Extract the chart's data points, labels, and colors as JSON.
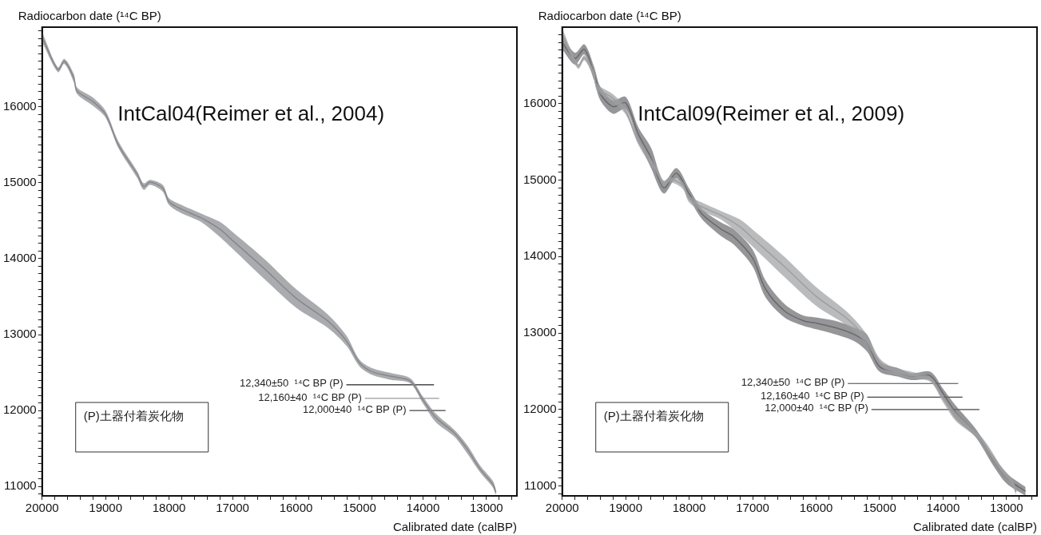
{
  "chart_data": [
    {
      "type": "line",
      "title": "IntCal04(Reimer et al., 2004)",
      "xlabel": "Calibrated date (calBP)",
      "ylabel": "Radiocarbon date (¹⁴C BP)",
      "annotations": [
        "(P)土器付着炭化物"
      ],
      "grid": false,
      "legend": false,
      "xlim": [
        20000,
        12520
      ],
      "ylim": [
        10876,
        17050
      ],
      "xticks": [
        20000,
        {
          "value": 19800,
          "label": null
        },
        {
          "value": 19600,
          "label": null
        },
        {
          "value": 19400,
          "label": null
        },
        {
          "value": 19200,
          "label": null
        },
        19000,
        {
          "value": 18800,
          "label": null
        },
        {
          "value": 18600,
          "label": null
        },
        {
          "value": 18400,
          "label": null
        },
        {
          "value": 18200,
          "label": null
        },
        18000,
        {
          "value": 17800,
          "label": null
        },
        {
          "value": 17600,
          "label": null
        },
        {
          "value": 17400,
          "label": null
        },
        {
          "value": 17200,
          "label": null
        },
        17000,
        {
          "value": 16800,
          "label": null
        },
        {
          "value": 16600,
          "label": null
        },
        {
          "value": 16400,
          "label": null
        },
        {
          "value": 16200,
          "label": null
        },
        16000,
        {
          "value": 15800,
          "label": null
        },
        {
          "value": 15600,
          "label": null
        },
        {
          "value": 15400,
          "label": null
        },
        {
          "value": 15200,
          "label": null
        },
        15000,
        {
          "value": 14800,
          "label": null
        },
        {
          "value": 14600,
          "label": null
        },
        {
          "value": 14400,
          "label": null
        },
        {
          "value": 14200,
          "label": null
        },
        14000,
        {
          "value": 13800,
          "label": null
        },
        {
          "value": 13600,
          "label": null
        },
        {
          "value": 13400,
          "label": null
        },
        {
          "value": 13200,
          "label": null
        },
        13000,
        {
          "value": 12800,
          "label": null
        },
        {
          "value": 12600,
          "label": null
        }
      ],
      "yticks": [
        {
          "value": 10900,
          "label": null
        },
        11000,
        {
          "value": 11100,
          "label": null
        },
        {
          "value": 11200,
          "label": null
        },
        {
          "value": 11300,
          "label": null
        },
        {
          "value": 11400,
          "label": null
        },
        {
          "value": 11500,
          "label": null
        },
        {
          "value": 11600,
          "label": null
        },
        {
          "value": 11700,
          "label": null
        },
        {
          "value": 11800,
          "label": null
        },
        {
          "value": 11900,
          "label": null
        },
        12000,
        {
          "value": 12100,
          "label": null
        },
        {
          "value": 12200,
          "label": null
        },
        {
          "value": 12300,
          "label": null
        },
        {
          "value": 12400,
          "label": null
        },
        {
          "value": 12500,
          "label": null
        },
        {
          "value": 12600,
          "label": null
        },
        {
          "value": 12700,
          "label": null
        },
        {
          "value": 12800,
          "label": null
        },
        {
          "value": 12900,
          "label": null
        },
        13000,
        {
          "value": 13100,
          "label": null
        },
        {
          "value": 13200,
          "label": null
        },
        {
          "value": 13300,
          "label": null
        },
        {
          "value": 13400,
          "label": null
        },
        {
          "value": 13500,
          "label": null
        },
        {
          "value": 13600,
          "label": null
        },
        {
          "value": 13700,
          "label": null
        },
        {
          "value": 13800,
          "label": null
        },
        {
          "value": 13900,
          "label": null
        },
        14000,
        {
          "value": 14100,
          "label": null
        },
        {
          "value": 14200,
          "label": null
        },
        {
          "value": 14300,
          "label": null
        },
        {
          "value": 14400,
          "label": null
        },
        {
          "value": 14500,
          "label": null
        },
        {
          "value": 14600,
          "label": null
        },
        {
          "value": 14700,
          "label": null
        },
        {
          "value": 14800,
          "label": null
        },
        {
          "value": 14900,
          "label": null
        },
        15000,
        {
          "value": 15100,
          "label": null
        },
        {
          "value": 15200,
          "label": null
        },
        {
          "value": 15300,
          "label": null
        },
        {
          "value": 15400,
          "label": null
        },
        {
          "value": 15500,
          "label": null
        },
        {
          "value": 15600,
          "label": null
        },
        {
          "value": 15700,
          "label": null
        },
        {
          "value": 15800,
          "label": null
        },
        {
          "value": 15900,
          "label": null
        },
        16000,
        {
          "value": 16100,
          "label": null
        },
        {
          "value": 16200,
          "label": null
        },
        {
          "value": 16300,
          "label": null
        },
        {
          "value": 16400,
          "label": null
        },
        {
          "value": 16500,
          "label": null
        },
        {
          "value": 16600,
          "label": null
        },
        {
          "value": 16700,
          "label": null
        },
        {
          "value": 16800,
          "label": null
        },
        {
          "value": 16900,
          "label": null
        },
        {
          "value": 17000,
          "label": null
        }
      ],
      "series": [
        {
          "type": "line",
          "color": "#86878c",
          "x": [
            20000,
            19750,
            19650,
            19500,
            19450,
            19200,
            19000,
            18800,
            18500,
            18400,
            18300,
            18100,
            18000,
            17800,
            17500,
            17200,
            17000,
            16500,
            16000,
            15500,
            15200,
            15000,
            14800,
            14500,
            14200,
            14000,
            13800,
            13500,
            13300,
            13100,
            12900,
            12850
          ],
          "values": [
            16920,
            16490,
            16600,
            16380,
            16210,
            16070,
            15900,
            15500,
            15110,
            14950,
            15010,
            14930,
            14750,
            14650,
            14540,
            14390,
            14240,
            13870,
            13480,
            13180,
            12910,
            12630,
            12510,
            12450,
            12390,
            12140,
            11910,
            11700,
            11490,
            11230,
            11030,
            10920
          ],
          "upper": [
            16988,
            16520,
            16633,
            16434,
            16257,
            16124,
            15947,
            15548,
            15150,
            14995,
            15039,
            14973,
            14796,
            14707,
            14596,
            14485,
            14353,
            13998,
            13600,
            13267,
            12980,
            12670,
            12559,
            12493,
            12426,
            12182,
            11961,
            11740,
            11540,
            11275,
            11075,
            10964
          ],
          "lower": [
            16855,
            16456,
            16567,
            16323,
            16168,
            16013,
            15858,
            15460,
            15061,
            14906,
            14973,
            14884,
            14707,
            14596,
            14485,
            14286,
            14131,
            13733,
            13356,
            13090,
            12847,
            12581,
            12470,
            12404,
            12360,
            12094,
            11850,
            11651,
            11430,
            11186,
            10987,
            10876
          ]
        },
        {
          "type": "line",
          "name": "12,340±50  ¹⁴C BP (P)",
          "color": "#222222",
          "x": [
            15207,
            13826
          ],
          "values": [
            12340,
            12340
          ]
        },
        {
          "type": "line",
          "name": "12,160±40  ¹⁴C BP (P)",
          "color": "#9a9a9a",
          "x": [
            14915,
            13744
          ],
          "values": [
            12160,
            12160
          ]
        },
        {
          "type": "line",
          "name": "12,000±40  ¹⁴C BP (P)",
          "color": "#444444",
          "x": [
            14213,
            13644
          ],
          "values": [
            12000,
            12000
          ]
        }
      ]
    },
    {
      "type": "line",
      "title": "IntCal09(Reimer et al., 2009)",
      "xlabel": "Calibrated date (calBP)",
      "ylabel": "Radiocarbon date (¹⁴C BP)",
      "annotations": [
        "(P)土器付着炭化物"
      ],
      "grid": false,
      "legend": false,
      "xlim": [
        20000,
        12520
      ],
      "ylim": [
        10870,
        17000
      ],
      "xticks": [
        20000,
        {
          "value": 19800,
          "label": null
        },
        {
          "value": 19600,
          "label": null
        },
        {
          "value": 19400,
          "label": null
        },
        {
          "value": 19200,
          "label": null
        },
        19000,
        {
          "value": 18800,
          "label": null
        },
        {
          "value": 18600,
          "label": null
        },
        {
          "value": 18400,
          "label": null
        },
        {
          "value": 18200,
          "label": null
        },
        18000,
        {
          "value": 17800,
          "label": null
        },
        {
          "value": 17600,
          "label": null
        },
        {
          "value": 17400,
          "label": null
        },
        {
          "value": 17200,
          "label": null
        },
        17000,
        {
          "value": 16800,
          "label": null
        },
        {
          "value": 16600,
          "label": null
        },
        {
          "value": 16400,
          "label": null
        },
        {
          "value": 16200,
          "label": null
        },
        16000,
        {
          "value": 15800,
          "label": null
        },
        {
          "value": 15600,
          "label": null
        },
        {
          "value": 15400,
          "label": null
        },
        {
          "value": 15200,
          "label": null
        },
        15000,
        {
          "value": 14800,
          "label": null
        },
        {
          "value": 14600,
          "label": null
        },
        {
          "value": 14400,
          "label": null
        },
        {
          "value": 14200,
          "label": null
        },
        14000,
        {
          "value": 13800,
          "label": null
        },
        {
          "value": 13600,
          "label": null
        },
        {
          "value": 13400,
          "label": null
        },
        {
          "value": 13200,
          "label": null
        },
        13000,
        {
          "value": 12800,
          "label": null
        },
        {
          "value": 12600,
          "label": null
        }
      ],
      "yticks": [
        {
          "value": 10900,
          "label": null
        },
        11000,
        {
          "value": 11100,
          "label": null
        },
        {
          "value": 11200,
          "label": null
        },
        {
          "value": 11300,
          "label": null
        },
        {
          "value": 11400,
          "label": null
        },
        {
          "value": 11500,
          "label": null
        },
        {
          "value": 11600,
          "label": null
        },
        {
          "value": 11700,
          "label": null
        },
        {
          "value": 11800,
          "label": null
        },
        {
          "value": 11900,
          "label": null
        },
        12000,
        {
          "value": 12100,
          "label": null
        },
        {
          "value": 12200,
          "label": null
        },
        {
          "value": 12300,
          "label": null
        },
        {
          "value": 12400,
          "label": null
        },
        {
          "value": 12500,
          "label": null
        },
        {
          "value": 12600,
          "label": null
        },
        {
          "value": 12700,
          "label": null
        },
        {
          "value": 12800,
          "label": null
        },
        {
          "value": 12900,
          "label": null
        },
        13000,
        {
          "value": 13100,
          "label": null
        },
        {
          "value": 13200,
          "label": null
        },
        {
          "value": 13300,
          "label": null
        },
        {
          "value": 13400,
          "label": null
        },
        {
          "value": 13500,
          "label": null
        },
        {
          "value": 13600,
          "label": null
        },
        {
          "value": 13700,
          "label": null
        },
        {
          "value": 13800,
          "label": null
        },
        {
          "value": 13900,
          "label": null
        },
        14000,
        {
          "value": 14100,
          "label": null
        },
        {
          "value": 14200,
          "label": null
        },
        {
          "value": 14300,
          "label": null
        },
        {
          "value": 14400,
          "label": null
        },
        {
          "value": 14500,
          "label": null
        },
        {
          "value": 14600,
          "label": null
        },
        {
          "value": 14700,
          "label": null
        },
        {
          "value": 14800,
          "label": null
        },
        {
          "value": 14900,
          "label": null
        },
        15000,
        {
          "value": 15100,
          "label": null
        },
        {
          "value": 15200,
          "label": null
        },
        {
          "value": 15300,
          "label": null
        },
        {
          "value": 15400,
          "label": null
        },
        {
          "value": 15500,
          "label": null
        },
        {
          "value": 15600,
          "label": null
        },
        {
          "value": 15700,
          "label": null
        },
        {
          "value": 15800,
          "label": null
        },
        {
          "value": 15900,
          "label": null
        },
        16000,
        {
          "value": 16100,
          "label": null
        },
        {
          "value": 16200,
          "label": null
        },
        {
          "value": 16300,
          "label": null
        },
        {
          "value": 16400,
          "label": null
        },
        {
          "value": 16500,
          "label": null
        },
        {
          "value": 16600,
          "label": null
        },
        {
          "value": 16700,
          "label": null
        },
        {
          "value": 16800,
          "label": null
        },
        {
          "value": 16900,
          "label": null
        }
      ],
      "series": [
        {
          "type": "line",
          "color": "#9d9ea0",
          "x": [
            20000,
            19750,
            19650,
            19500,
            19450,
            19200,
            19000,
            18800,
            18500,
            18400,
            18300,
            18100,
            18000,
            17800,
            17500,
            17200,
            17000,
            16500,
            16000,
            15500,
            15200,
            15000,
            14800,
            14500,
            14200,
            14000,
            13800,
            13500,
            13300,
            13100,
            12900,
            12850
          ],
          "values": [
            16920,
            16490,
            16600,
            16380,
            16210,
            16070,
            15900,
            15500,
            15110,
            14950,
            15010,
            14930,
            14750,
            14650,
            14540,
            14390,
            14240,
            13870,
            13480,
            13180,
            12910,
            12630,
            12510,
            12450,
            12390,
            12140,
            11910,
            11700,
            11490,
            11230,
            11030,
            10920
          ],
          "upper": [
            16988,
            16520,
            16633,
            16434,
            16257,
            16124,
            15947,
            15548,
            15150,
            14995,
            15039,
            14973,
            14796,
            14707,
            14596,
            14485,
            14353,
            13998,
            13600,
            13267,
            12980,
            12670,
            12559,
            12493,
            12426,
            12182,
            11961,
            11740,
            11540,
            11275,
            11075,
            10964
          ],
          "lower": [
            16855,
            16456,
            16567,
            16323,
            16168,
            16013,
            15858,
            15460,
            15061,
            14906,
            14973,
            14884,
            14707,
            14596,
            14485,
            14286,
            14131,
            13733,
            13356,
            13090,
            12847,
            12581,
            12470,
            12404,
            12360,
            12094,
            11850,
            11651,
            11430,
            11186,
            10987,
            10876
          ]
        },
        {
          "type": "line",
          "color": "#6a6a6e",
          "x": [
            20000,
            19800,
            19650,
            19500,
            19400,
            19200,
            19000,
            18800,
            18600,
            18400,
            18200,
            18000,
            17800,
            17500,
            17300,
            17000,
            16800,
            16500,
            16200,
            16000,
            15700,
            15400,
            15200,
            15000,
            14700,
            14500,
            14200,
            14000,
            13800,
            13500,
            13200,
            13000,
            12700
          ],
          "values": [
            16800,
            16590,
            16710,
            16400,
            16130,
            15960,
            16010,
            15600,
            15290,
            14900,
            15090,
            14820,
            14560,
            14360,
            14260,
            13980,
            13580,
            13290,
            13160,
            13130,
            13070,
            12980,
            12870,
            12560,
            12480,
            12430,
            12440,
            12210,
            11960,
            11710,
            11320,
            11100,
            10930
          ],
          "upper": [
            16887,
            16665,
            16776,
            16488,
            16222,
            16044,
            16089,
            15689,
            15423,
            14980,
            15157,
            14891,
            14625,
            14447,
            14358,
            14092,
            13693,
            13382,
            13227,
            13205,
            13160,
            13072,
            12983,
            12628,
            12539,
            12473,
            12495,
            12273,
            12051,
            11763,
            11386,
            11164,
            10987
          ],
          "lower": [
            16710,
            16510,
            16643,
            16310,
            16044,
            15867,
            15933,
            15512,
            15157,
            14824,
            15024,
            14758,
            14492,
            14270,
            14159,
            13870,
            13471,
            13205,
            13094,
            13050,
            12983,
            12894,
            12761,
            12495,
            12429,
            12384,
            12384,
            12140,
            11874,
            11652,
            11253,
            11031,
            10870
          ]
        },
        {
          "type": "line",
          "name": "12,340±50  ¹⁴C BP (P)",
          "color": "#444444",
          "x": [
            15500,
            13761
          ],
          "values": [
            12340,
            12340
          ]
        },
        {
          "type": "line",
          "name": "12,160±40  ¹⁴C BP (P)",
          "color": "#444444",
          "x": [
            15194,
            13694
          ],
          "values": [
            12160,
            12160
          ]
        },
        {
          "type": "line",
          "name": "12,000±40  ¹⁴C BP (P)",
          "color": "#444444",
          "x": [
            15128,
            13428
          ],
          "values": [
            12000,
            12000
          ]
        }
      ]
    }
  ]
}
